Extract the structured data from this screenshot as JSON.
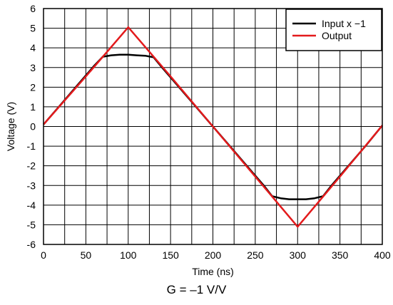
{
  "chart_data": {
    "type": "line",
    "xlabel": "Time (ns)",
    "ylabel": "Voltage (V)",
    "xlim": [
      0,
      400
    ],
    "ylim": [
      -6,
      6
    ],
    "x_ticks": [
      0,
      50,
      100,
      150,
      200,
      250,
      300,
      350,
      400
    ],
    "x_tick_labels": [
      "0",
      "50",
      "100",
      "150",
      "200",
      "250",
      "300",
      "350",
      "400"
    ],
    "y_ticks": [
      6,
      5,
      4,
      3,
      2,
      1,
      0,
      -1,
      -2,
      -3,
      -4,
      -5,
      -6
    ],
    "y_tick_labels": [
      "6",
      "5",
      "4",
      "3",
      "2",
      "1",
      "0",
      "-1",
      "-2",
      "-3",
      "-4",
      "-5",
      "-6"
    ],
    "x_minor_step": 25,
    "grid": true,
    "legend_position": "top-right",
    "series": [
      {
        "name": "Input x −1",
        "color": "#000000",
        "x": [
          0,
          20,
          40,
          60,
          70,
          80,
          90,
          100,
          110,
          120,
          130,
          140,
          160,
          180,
          200,
          220,
          240,
          260,
          270,
          280,
          290,
          300,
          310,
          320,
          330,
          340,
          360,
          380,
          400
        ],
        "y": [
          0.1,
          1.1,
          2.1,
          3.1,
          3.55,
          3.62,
          3.65,
          3.65,
          3.62,
          3.6,
          3.52,
          3.0,
          2.0,
          1.0,
          0.0,
          -1.0,
          -2.0,
          -3.0,
          -3.55,
          -3.65,
          -3.7,
          -3.7,
          -3.7,
          -3.65,
          -3.55,
          -3.0,
          -2.0,
          -1.0,
          0.05
        ]
      },
      {
        "name": "Output",
        "color": "#e31a1c",
        "x": [
          0,
          50,
          100,
          150,
          200,
          250,
          300,
          350,
          400
        ],
        "y": [
          0.1,
          2.55,
          5.05,
          2.55,
          0.0,
          -2.55,
          -5.1,
          -2.55,
          0.05
        ]
      }
    ],
    "annotation": "G = –1 V/V"
  }
}
